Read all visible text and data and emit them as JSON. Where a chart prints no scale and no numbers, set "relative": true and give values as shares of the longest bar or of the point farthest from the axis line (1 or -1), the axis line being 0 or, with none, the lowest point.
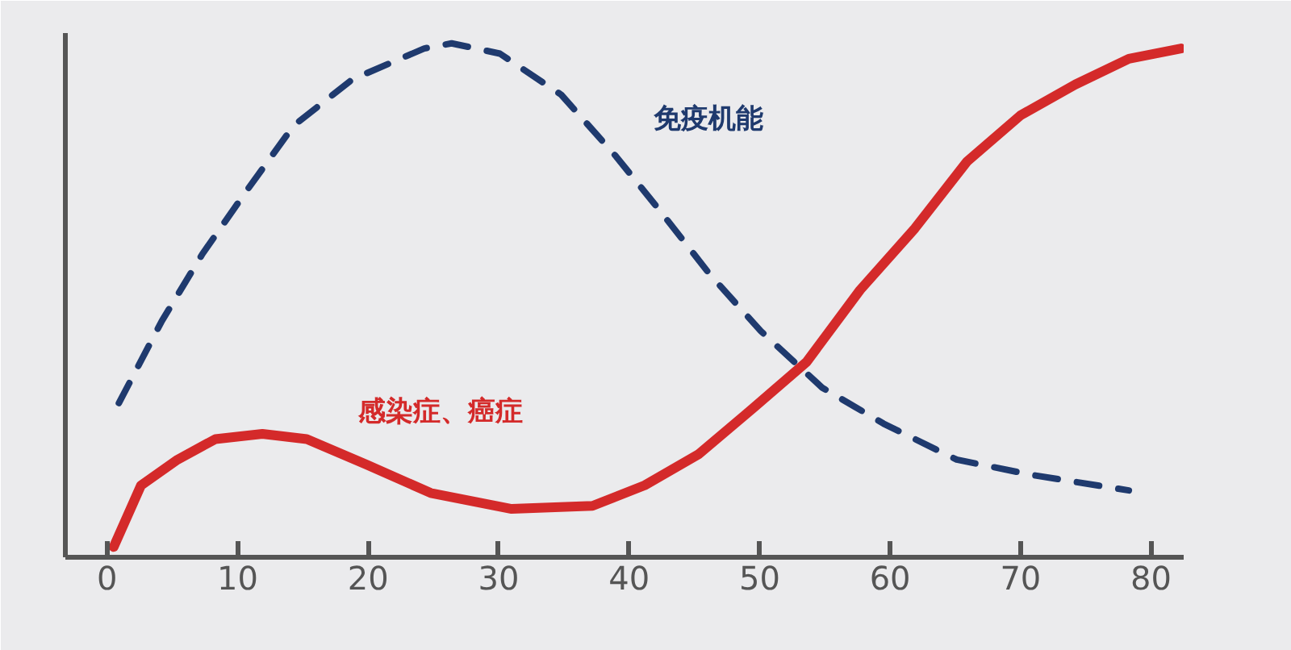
{
  "chart_data": {
    "type": "line",
    "relative": true,
    "xlim": [
      -3.2,
      82.5
    ],
    "xticks": [
      0,
      10,
      20,
      30,
      40,
      50,
      60,
      70,
      80
    ],
    "marker": "none",
    "series": [
      {
        "name": "免疫机能",
        "color": "#1f3a6e",
        "line_style": "dashed",
        "x": [
          0.9,
          4.2,
          7.3,
          10.6,
          14.3,
          18.8,
          24.3,
          26.4,
          30.1,
          34.8,
          39.0,
          42.5,
          46.2,
          50.1,
          54.8,
          59.5,
          65.1,
          70.9,
          78.3
        ],
        "values": [
          0.3,
          0.46,
          0.59,
          0.71,
          0.84,
          0.93,
          0.99,
          1.0,
          0.98,
          0.9,
          0.78,
          0.67,
          0.55,
          0.44,
          0.33,
          0.26,
          0.19,
          0.16,
          0.13
        ]
      },
      {
        "name": "感染症、癌症",
        "color": "#d42a2a",
        "line_style": "solid",
        "x": [
          0.5,
          2.6,
          5.4,
          8.3,
          11.9,
          15.3,
          19.9,
          24.8,
          31.0,
          37.2,
          41.2,
          45.3,
          49.5,
          53.6,
          57.7,
          61.9,
          65.9,
          70.0,
          74.2,
          78.3,
          82.3
        ],
        "values": [
          0.02,
          0.14,
          0.19,
          0.23,
          0.24,
          0.23,
          0.18,
          0.125,
          0.094,
          0.1,
          0.14,
          0.2,
          0.29,
          0.38,
          0.52,
          0.64,
          0.77,
          0.86,
          0.92,
          0.97,
          0.99
        ]
      }
    ]
  }
}
